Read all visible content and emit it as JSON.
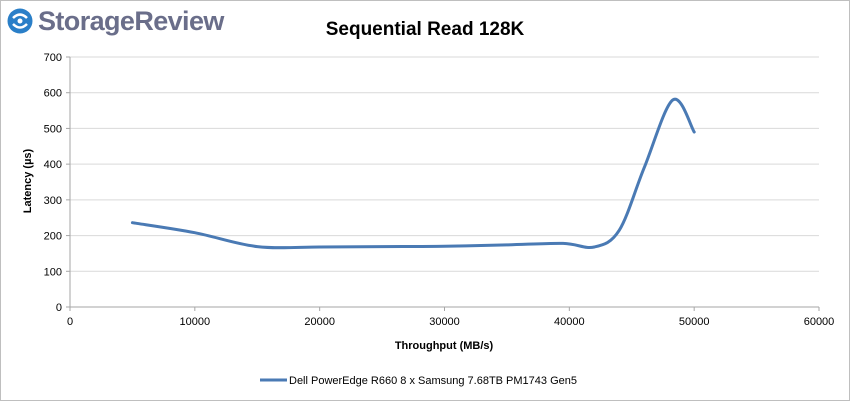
{
  "logo": {
    "brand": "StorageReview"
  },
  "chart_data": {
    "type": "line",
    "title": "Sequential Read 128K",
    "xlabel": "Throughput (MB/s)",
    "ylabel": "Latency (µs)",
    "xlim": [
      0,
      60000
    ],
    "ylim": [
      0,
      700
    ],
    "x_ticks": [
      0,
      10000,
      20000,
      30000,
      40000,
      50000,
      60000
    ],
    "y_ticks": [
      0,
      100,
      200,
      300,
      400,
      500,
      600,
      700
    ],
    "x_tick_labels": [
      "0",
      "10000",
      "20000",
      "30000",
      "40000",
      "50000",
      "60000"
    ],
    "y_tick_labels": [
      "0",
      "100",
      "200",
      "300",
      "400",
      "500",
      "600",
      "700"
    ],
    "grid": "horizontal",
    "legend_position": "bottom",
    "series": [
      {
        "name": "Dell PowerEdge R660 8 x Samsung 7.68TB PM1743 Gen5",
        "color": "#4a7ab4",
        "x": [
          5000,
          10000,
          15000,
          20000,
          25000,
          30000,
          35000,
          39500,
          42000,
          44000,
          46000,
          48300,
          50000
        ],
        "y": [
          236,
          208,
          169,
          168,
          169,
          170,
          174,
          178,
          168,
          215,
          390,
          580,
          490
        ]
      }
    ]
  }
}
